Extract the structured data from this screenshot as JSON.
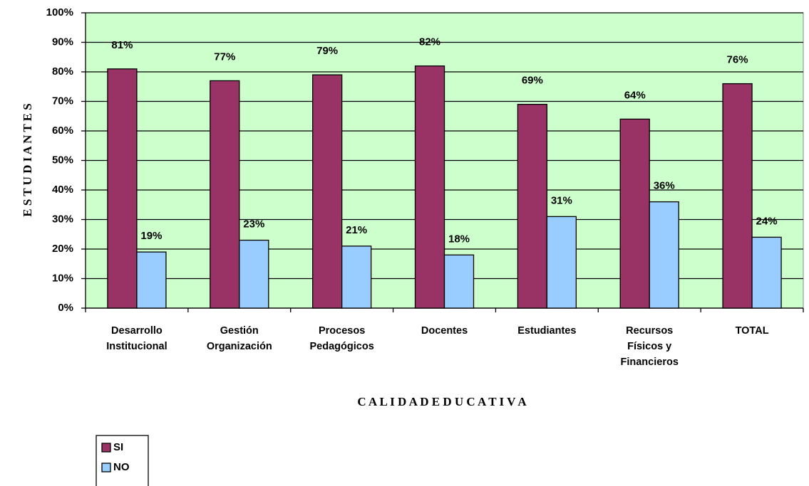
{
  "chart_data": {
    "type": "bar",
    "xlabel": "C A L I D A D   E D U C A T I V A",
    "ylabel": "E S T U D I A N T E S",
    "categories": [
      "Desarrollo Institucional",
      "Gestión Organización",
      "Procesos Pedagógicos",
      "Docentes",
      "Estudiantes",
      "Recursos Físicos y Financieros",
      "TOTAL"
    ],
    "series": [
      {
        "name": "SI",
        "color": "#993366",
        "values": [
          81,
          77,
          79,
          82,
          69,
          64,
          76
        ],
        "value_labels": [
          "81%",
          "77%",
          "79%",
          "82%",
          "69%",
          "64%",
          "76%"
        ]
      },
      {
        "name": "NO",
        "color": "#99ccff",
        "values": [
          19,
          23,
          21,
          18,
          31,
          36,
          24
        ],
        "value_labels": [
          "19%",
          "23%",
          "21%",
          "18%",
          "31%",
          "36%",
          "24%"
        ]
      }
    ],
    "ylim": [
      0,
      100
    ],
    "yticks": [
      {
        "value": 0,
        "label": "0%"
      },
      {
        "value": 10,
        "label": "10%"
      },
      {
        "value": 20,
        "label": "20%"
      },
      {
        "value": 30,
        "label": "30%"
      },
      {
        "value": 40,
        "label": "40%"
      },
      {
        "value": 50,
        "label": "50%"
      },
      {
        "value": 60,
        "label": "60%"
      },
      {
        "value": 70,
        "label": "70%"
      },
      {
        "value": 80,
        "label": "80%"
      },
      {
        "value": 90,
        "label": "90%"
      },
      {
        "value": 100,
        "label": "100%"
      }
    ],
    "grid": true,
    "plot_background": "#ccffcc"
  }
}
